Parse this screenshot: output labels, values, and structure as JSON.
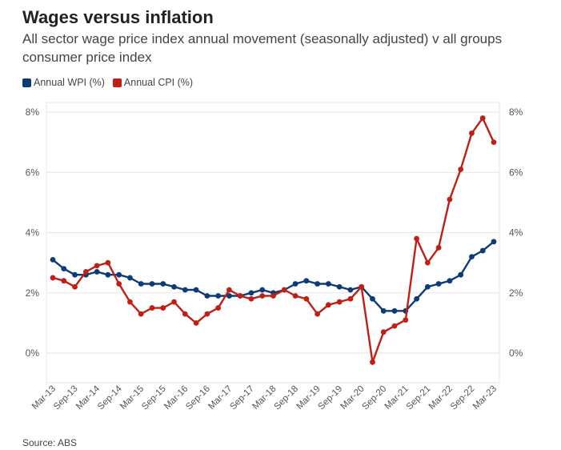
{
  "header": {
    "title": "Wages versus inflation",
    "subtitle": "All sector wage price index annual movement (seasonally adjusted) v all groups consumer price index"
  },
  "footer": {
    "source": "Source: ABS"
  },
  "colors": {
    "wpi": "#0d3b75",
    "cpi": "#c01f15",
    "grid": "#e6e6e6",
    "axis_text": "#555555"
  },
  "chart_data": {
    "type": "line",
    "title": "Wages versus inflation",
    "subtitle": "All sector wage price index annual movement (seasonally adjusted) v all groups consumer price index",
    "x": [
      "Mar-13",
      "Jun-13",
      "Sep-13",
      "Dec-13",
      "Mar-14",
      "Jun-14",
      "Sep-14",
      "Dec-14",
      "Mar-15",
      "Jun-15",
      "Sep-15",
      "Dec-15",
      "Mar-16",
      "Jun-16",
      "Sep-16",
      "Dec-16",
      "Mar-17",
      "Jun-17",
      "Sep-17",
      "Dec-17",
      "Mar-18",
      "Jun-18",
      "Sep-18",
      "Dec-18",
      "Mar-19",
      "Jun-19",
      "Sep-19",
      "Dec-19",
      "Mar-20",
      "Jun-20",
      "Sep-20",
      "Dec-20",
      "Mar-21",
      "Jun-21",
      "Sep-21",
      "Dec-21",
      "Mar-22",
      "Jun-22",
      "Sep-22",
      "Dec-22",
      "Mar-23"
    ],
    "xtick_labels": [
      "Mar-13",
      "Sep-13",
      "Mar-14",
      "Sep-14",
      "Mar-15",
      "Sep-15",
      "Mar-16",
      "Sep-16",
      "Mar-17",
      "Sep-17",
      "Mar-18",
      "Sep-18",
      "Mar-19",
      "Sep-19",
      "Mar-20",
      "Sep-20",
      "Mar-21",
      "Sep-21",
      "Mar-22",
      "Sep-22",
      "Mar-23"
    ],
    "yticks": [
      "0%",
      "2%",
      "4%",
      "6%",
      "8%"
    ],
    "ylim": [
      -1,
      8
    ],
    "legend_position": "top-left",
    "grid": true,
    "series": [
      {
        "name": "Annual WPI (%)",
        "color": "#0d3b75",
        "values": [
          3.1,
          2.8,
          2.6,
          2.6,
          2.7,
          2.6,
          2.6,
          2.5,
          2.3,
          2.3,
          2.3,
          2.2,
          2.1,
          2.1,
          1.9,
          1.9,
          1.9,
          1.9,
          2.0,
          2.1,
          2.0,
          2.1,
          2.3,
          2.4,
          2.3,
          2.3,
          2.2,
          2.1,
          2.2,
          1.8,
          1.4,
          1.4,
          1.4,
          1.8,
          2.2,
          2.3,
          2.4,
          2.6,
          3.2,
          3.4,
          3.7
        ]
      },
      {
        "name": "Annual CPI (%)",
        "color": "#c01f15",
        "values": [
          2.5,
          2.4,
          2.2,
          2.7,
          2.9,
          3.0,
          2.3,
          1.7,
          1.3,
          1.5,
          1.5,
          1.7,
          1.3,
          1.0,
          1.3,
          1.5,
          2.1,
          1.9,
          1.8,
          1.9,
          1.9,
          2.1,
          1.9,
          1.8,
          1.3,
          1.6,
          1.7,
          1.8,
          2.2,
          -0.3,
          0.7,
          0.9,
          1.1,
          3.8,
          3.0,
          3.5,
          5.1,
          6.1,
          7.3,
          7.8,
          7.0
        ]
      }
    ]
  }
}
